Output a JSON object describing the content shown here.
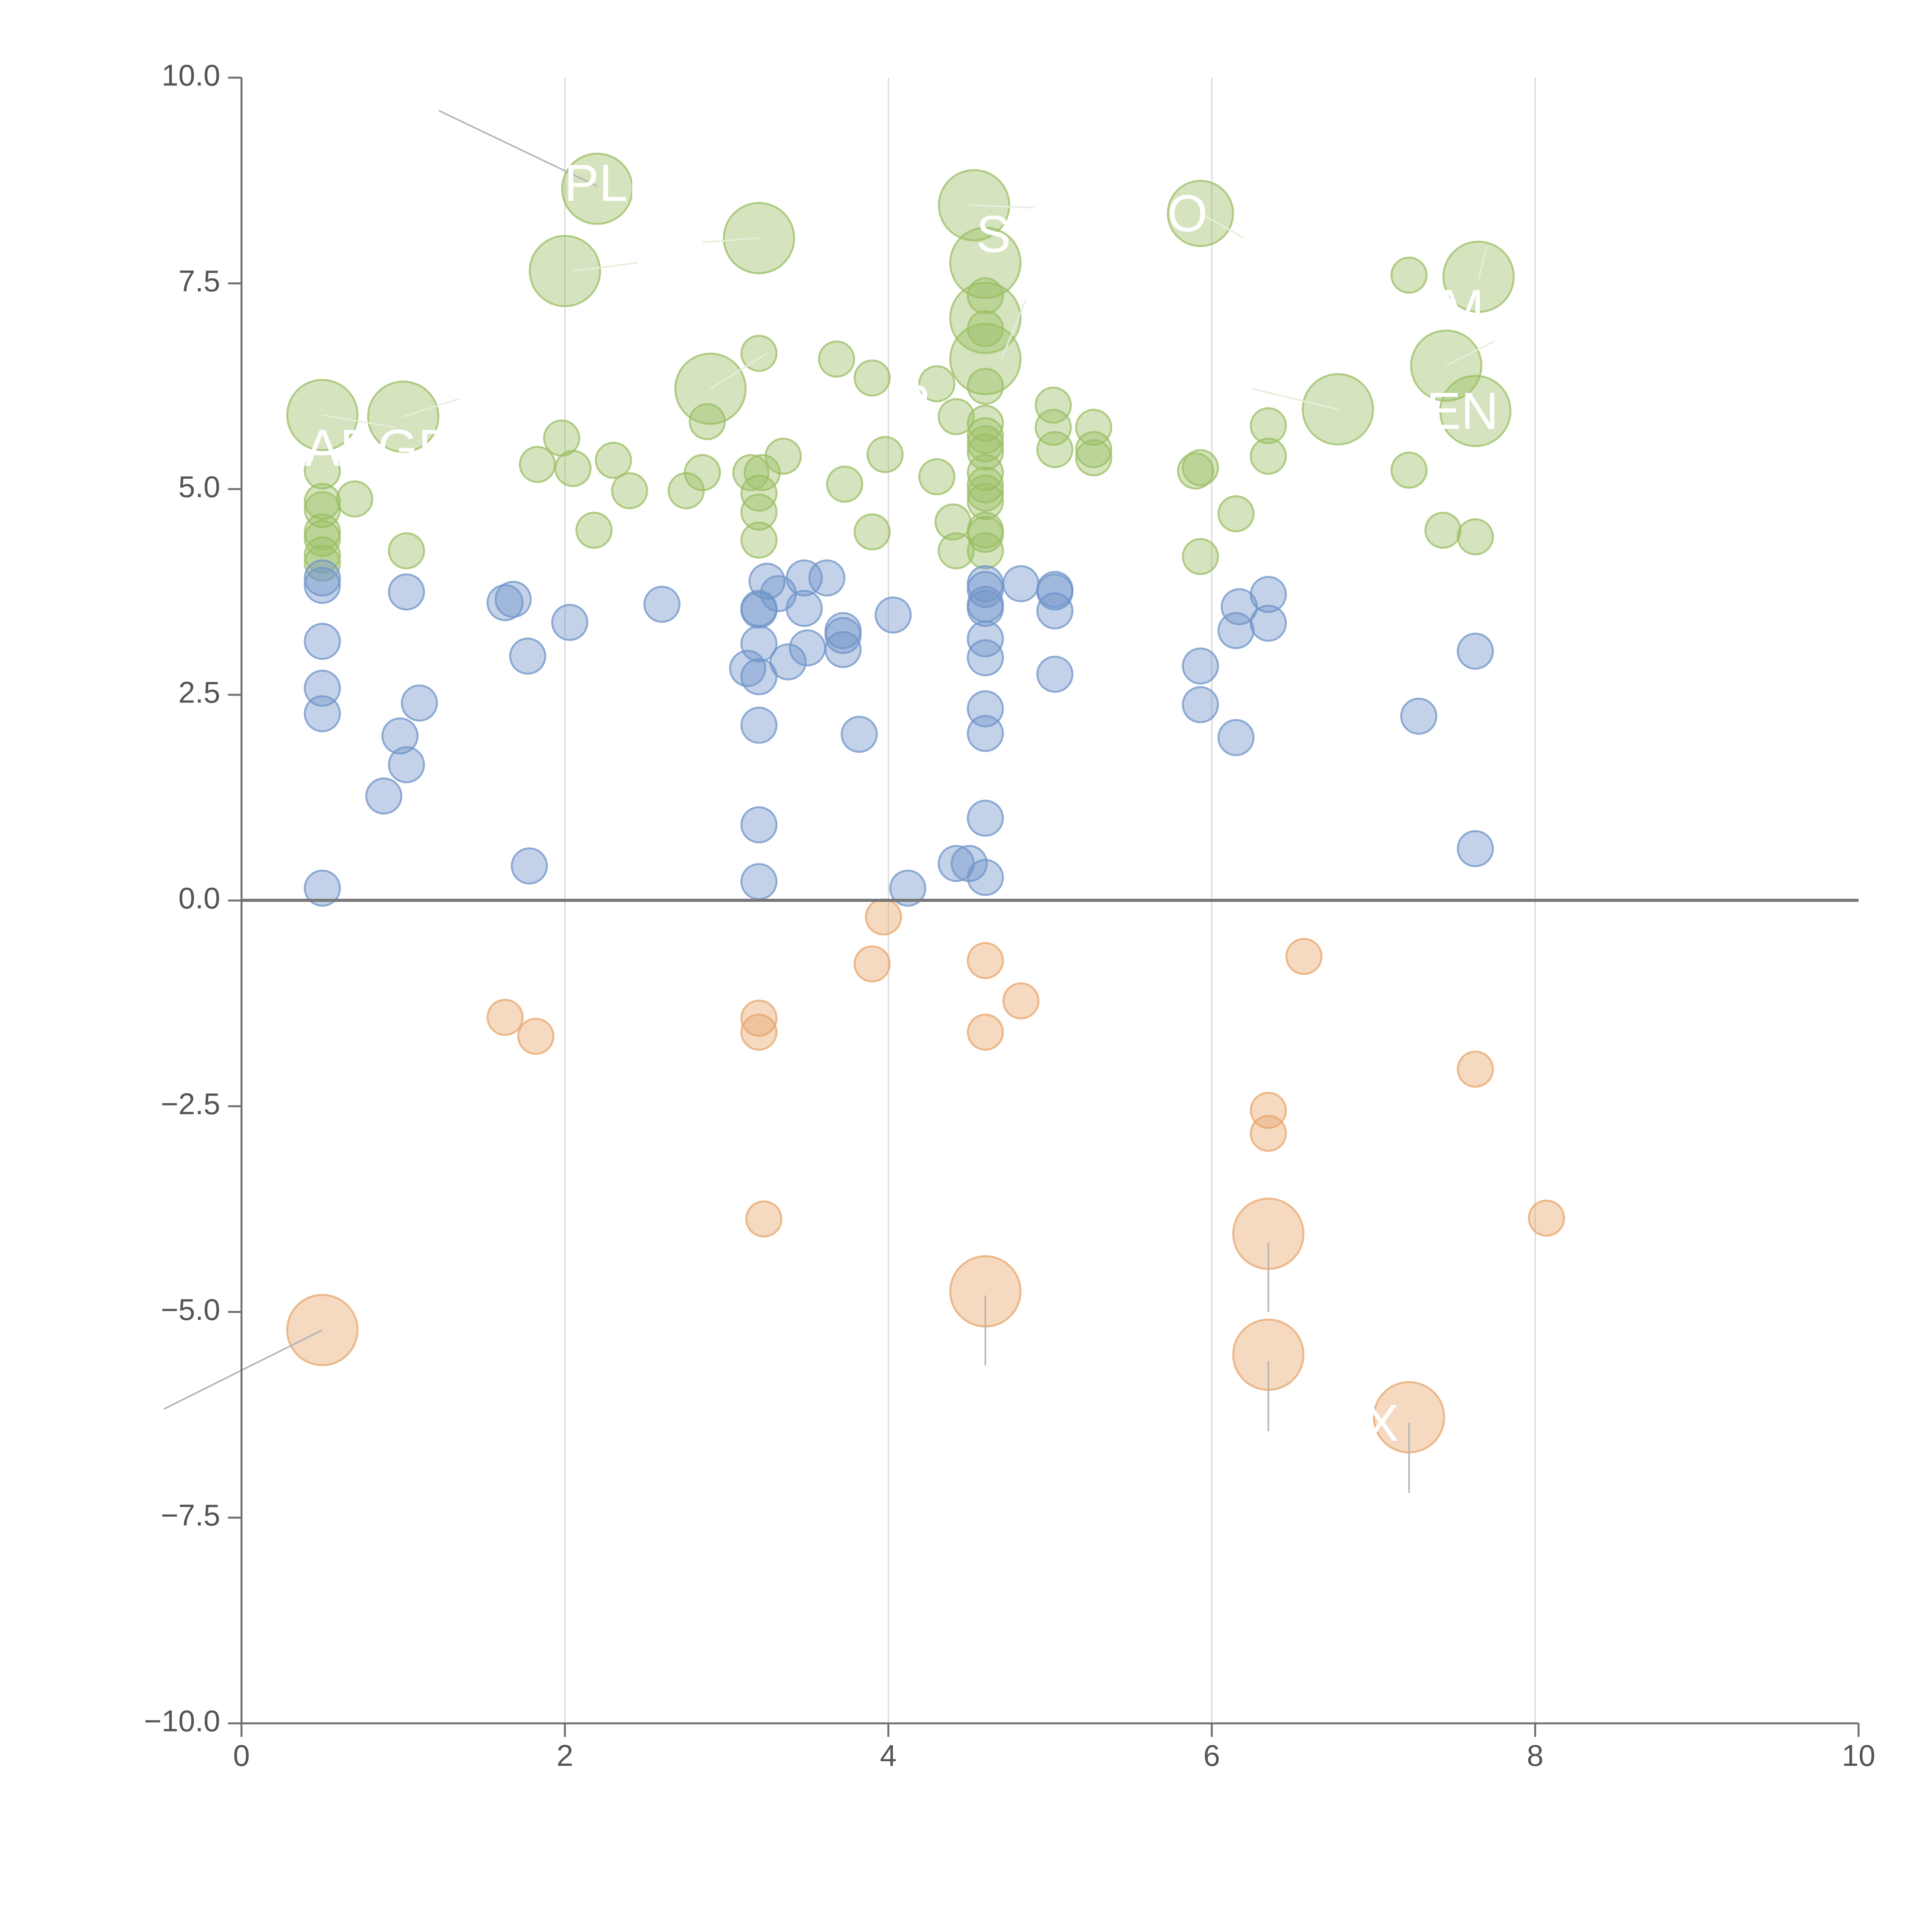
{
  "chart_data": {
    "type": "scatter",
    "title": "",
    "xlabel": "",
    "ylabel": "",
    "xlim": [
      0,
      10
    ],
    "ylim": [
      -10,
      10
    ],
    "x_ticks": [
      0,
      2,
      4,
      6,
      8,
      10
    ],
    "x_tick_labels": [
      "0",
      "2",
      "4",
      "6",
      "8",
      "10"
    ],
    "y_ticks": [
      10,
      7.5,
      5,
      2.5,
      0,
      -2.5,
      -5,
      -7.5,
      -10
    ],
    "y_tick_labels": [
      "10.0",
      "7.5",
      "5.0",
      "2.5",
      "0.0",
      "−2.5",
      "−5.0",
      "−7.5",
      "−10.0"
    ],
    "vertical_gridlines_at": [
      2,
      4,
      6,
      8
    ],
    "zero_line": 0,
    "series": [
      {
        "name": "high",
        "color": "#9bbf63",
        "points": [
          [
            2.2,
            8.65,
            1.4
          ],
          [
            2.0,
            7.65,
            1.4
          ],
          [
            3.2,
            8.05,
            1.4
          ],
          [
            4.53,
            8.45,
            1.4
          ],
          [
            5.93,
            8.35,
            1.3
          ],
          [
            4.6,
            7.75,
            1.4
          ],
          [
            4.6,
            7.08,
            1.4
          ],
          [
            4.6,
            6.58,
            1.4
          ],
          [
            2.9,
            6.22,
            1.4
          ],
          [
            7.65,
            7.58,
            1.4
          ],
          [
            7.45,
            6.5,
            1.4
          ],
          [
            7.63,
            5.95,
            1.4
          ],
          [
            6.78,
            5.97,
            1.4
          ],
          [
            0.5,
            5.9,
            1.4
          ],
          [
            1.0,
            5.88,
            1.4
          ],
          [
            7.22,
            7.6,
            0.7
          ],
          [
            3.2,
            6.65,
            0.7
          ],
          [
            3.68,
            6.58,
            0.7
          ],
          [
            3.9,
            6.35,
            0.7
          ],
          [
            4.3,
            6.28,
            0.7
          ],
          [
            4.42,
            5.88,
            0.7
          ],
          [
            5.02,
            6.02,
            0.7
          ],
          [
            5.02,
            5.75,
            0.7
          ],
          [
            5.27,
            5.75,
            0.7
          ],
          [
            5.03,
            5.48,
            0.7
          ],
          [
            5.27,
            5.48,
            0.7
          ],
          [
            5.27,
            5.38,
            0.7
          ],
          [
            2.88,
            5.82,
            0.7
          ],
          [
            1.98,
            5.62,
            0.7
          ],
          [
            2.05,
            5.25,
            0.7
          ],
          [
            2.3,
            5.35,
            0.7
          ],
          [
            1.83,
            5.3,
            0.7
          ],
          [
            2.4,
            4.98,
            0.7
          ],
          [
            2.75,
            4.98,
            0.7
          ],
          [
            2.85,
            5.2,
            0.7
          ],
          [
            3.15,
            5.2,
            0.7
          ],
          [
            3.22,
            5.2,
            0.7
          ],
          [
            3.2,
            4.95,
            0.7
          ],
          [
            3.2,
            4.72,
            0.7
          ],
          [
            3.2,
            4.38,
            0.7
          ],
          [
            3.35,
            5.4,
            0.7
          ],
          [
            3.73,
            5.06,
            0.7
          ],
          [
            3.98,
            5.42,
            0.7
          ],
          [
            4.3,
            5.15,
            0.7
          ],
          [
            3.9,
            4.48,
            0.7
          ],
          [
            4.4,
            4.6,
            0.7
          ],
          [
            4.42,
            4.25,
            0.7
          ],
          [
            2.18,
            4.5,
            0.7
          ],
          [
            1.02,
            4.25,
            0.7
          ],
          [
            0.7,
            4.88,
            0.7
          ],
          [
            0.5,
            5.22,
            0.7
          ],
          [
            0.5,
            4.85,
            0.7
          ],
          [
            0.5,
            4.75,
            0.7
          ],
          [
            0.5,
            4.48,
            0.7
          ],
          [
            0.5,
            4.4,
            0.7
          ],
          [
            0.5,
            4.2,
            0.7
          ],
          [
            0.5,
            4.1,
            0.7
          ],
          [
            4.6,
            7.35,
            0.7
          ],
          [
            4.6,
            6.95,
            0.7
          ],
          [
            4.6,
            6.25,
            0.7
          ],
          [
            4.6,
            5.8,
            0.7
          ],
          [
            4.6,
            5.65,
            0.7
          ],
          [
            4.6,
            5.55,
            0.7
          ],
          [
            4.6,
            5.45,
            0.7
          ],
          [
            4.6,
            5.2,
            0.7
          ],
          [
            4.6,
            5.05,
            0.7
          ],
          [
            4.6,
            4.95,
            0.7
          ],
          [
            4.6,
            4.85,
            0.7
          ],
          [
            4.6,
            4.5,
            0.7
          ],
          [
            4.6,
            4.45,
            0.7
          ],
          [
            4.6,
            4.25,
            0.7
          ],
          [
            5.9,
            5.22,
            0.7
          ],
          [
            5.93,
            5.26,
            0.7
          ],
          [
            5.93,
            4.18,
            0.7
          ],
          [
            6.15,
            4.7,
            0.7
          ],
          [
            6.35,
            5.77,
            0.7
          ],
          [
            6.35,
            5.4,
            0.7
          ],
          [
            7.22,
            5.23,
            0.7
          ],
          [
            7.43,
            4.5,
            0.7
          ],
          [
            7.63,
            4.42,
            0.7
          ]
        ]
      },
      {
        "name": "mid",
        "color": "#7094c9",
        "points": [
          [
            0.5,
            3.92,
            0.7
          ],
          [
            0.5,
            3.83,
            0.7
          ],
          [
            0.5,
            3.15,
            0.7
          ],
          [
            0.5,
            2.58,
            0.7
          ],
          [
            0.5,
            2.27,
            0.7
          ],
          [
            0.5,
            0.15,
            0.7
          ],
          [
            1.02,
            3.75,
            0.7
          ],
          [
            1.1,
            2.4,
            0.7
          ],
          [
            0.98,
            2.0,
            0.7
          ],
          [
            1.02,
            1.65,
            0.7
          ],
          [
            0.88,
            1.27,
            0.7
          ],
          [
            1.63,
            3.62,
            0.7
          ],
          [
            1.68,
            3.66,
            0.7
          ],
          [
            1.77,
            2.97,
            0.7
          ],
          [
            2.03,
            3.38,
            0.7
          ],
          [
            1.78,
            0.42,
            0.7
          ],
          [
            2.6,
            3.6,
            0.7
          ],
          [
            3.2,
            3.55,
            0.7
          ],
          [
            3.2,
            3.53,
            0.7
          ],
          [
            3.25,
            3.88,
            0.7
          ],
          [
            3.32,
            3.73,
            0.7
          ],
          [
            3.48,
            3.92,
            0.7
          ],
          [
            3.48,
            3.55,
            0.7
          ],
          [
            3.62,
            3.92,
            0.7
          ],
          [
            3.72,
            3.28,
            0.7
          ],
          [
            3.72,
            3.22,
            0.7
          ],
          [
            3.72,
            3.05,
            0.7
          ],
          [
            3.5,
            3.07,
            0.7
          ],
          [
            3.38,
            2.9,
            0.7
          ],
          [
            3.2,
            3.12,
            0.7
          ],
          [
            3.13,
            2.82,
            0.7
          ],
          [
            3.2,
            2.72,
            0.7
          ],
          [
            3.2,
            2.13,
            0.7
          ],
          [
            3.82,
            2.02,
            0.7
          ],
          [
            4.03,
            3.47,
            0.7
          ],
          [
            3.2,
            0.92,
            0.7
          ],
          [
            3.2,
            0.23,
            0.7
          ],
          [
            4.12,
            0.15,
            0.7
          ],
          [
            4.42,
            0.45,
            0.7
          ],
          [
            4.5,
            0.45,
            0.7
          ],
          [
            4.6,
            0.28,
            0.7
          ],
          [
            4.6,
            1.0,
            0.7
          ],
          [
            4.6,
            2.03,
            0.7
          ],
          [
            4.6,
            2.33,
            0.7
          ],
          [
            4.6,
            2.95,
            0.7
          ],
          [
            4.6,
            3.18,
            0.7
          ],
          [
            4.6,
            3.55,
            0.7
          ],
          [
            4.6,
            3.6,
            0.7
          ],
          [
            4.6,
            3.78,
            0.7
          ],
          [
            4.6,
            3.85,
            0.7
          ],
          [
            4.82,
            3.85,
            0.7
          ],
          [
            5.03,
            3.78,
            0.7
          ],
          [
            5.03,
            3.75,
            0.7
          ],
          [
            5.03,
            3.52,
            0.7
          ],
          [
            5.03,
            2.75,
            0.7
          ],
          [
            5.93,
            2.85,
            0.7
          ],
          [
            5.93,
            2.38,
            0.7
          ],
          [
            6.15,
            1.98,
            0.7
          ],
          [
            6.15,
            3.28,
            0.7
          ],
          [
            6.17,
            3.57,
            0.7
          ],
          [
            6.35,
            3.72,
            0.7
          ],
          [
            6.35,
            3.37,
            0.7
          ],
          [
            7.28,
            2.24,
            0.7
          ],
          [
            7.63,
            3.03,
            0.7
          ],
          [
            7.63,
            0.63,
            0.7
          ]
        ]
      },
      {
        "name": "low",
        "color": "#e8a56b",
        "points": [
          [
            3.97,
            -0.2,
            0.7
          ],
          [
            3.9,
            -0.77,
            0.7
          ],
          [
            4.6,
            -0.73,
            0.7
          ],
          [
            4.82,
            -1.22,
            0.7
          ],
          [
            4.6,
            -1.6,
            0.7
          ],
          [
            3.2,
            -1.43,
            0.7
          ],
          [
            3.2,
            -1.6,
            0.7
          ],
          [
            1.63,
            -1.42,
            0.7
          ],
          [
            1.82,
            -1.65,
            0.7
          ],
          [
            6.57,
            -0.68,
            0.7
          ],
          [
            7.63,
            -2.05,
            0.7
          ],
          [
            6.35,
            -2.55,
            0.7
          ],
          [
            6.35,
            -2.83,
            0.7
          ],
          [
            3.23,
            -3.87,
            0.7
          ],
          [
            8.07,
            -3.86,
            0.7
          ],
          [
            6.35,
            -4.05,
            1.4
          ],
          [
            4.6,
            -4.75,
            1.4
          ],
          [
            6.35,
            -5.52,
            1.4
          ],
          [
            7.22,
            -6.28,
            1.4
          ],
          [
            0.5,
            -5.22,
            1.4
          ]
        ]
      }
    ],
    "bubble_labels": [
      {
        "text": "PLE",
        "x": 2.3,
        "y": 8.67
      },
      {
        "text": "S",
        "x": 4.65,
        "y": 8.05
      },
      {
        "text": "O",
        "x": 5.85,
        "y": 8.3
      },
      {
        "text": "M",
        "x": 7.55,
        "y": 7.15
      },
      {
        "text": "P",
        "x": 4.15,
        "y": 6.0
      },
      {
        "text": "EN",
        "x": 7.55,
        "y": 5.9
      },
      {
        "text": "ARGE",
        "x": 0.85,
        "y": 5.45
      },
      {
        "text": "X",
        "x": 7.05,
        "y": -6.4
      }
    ]
  }
}
